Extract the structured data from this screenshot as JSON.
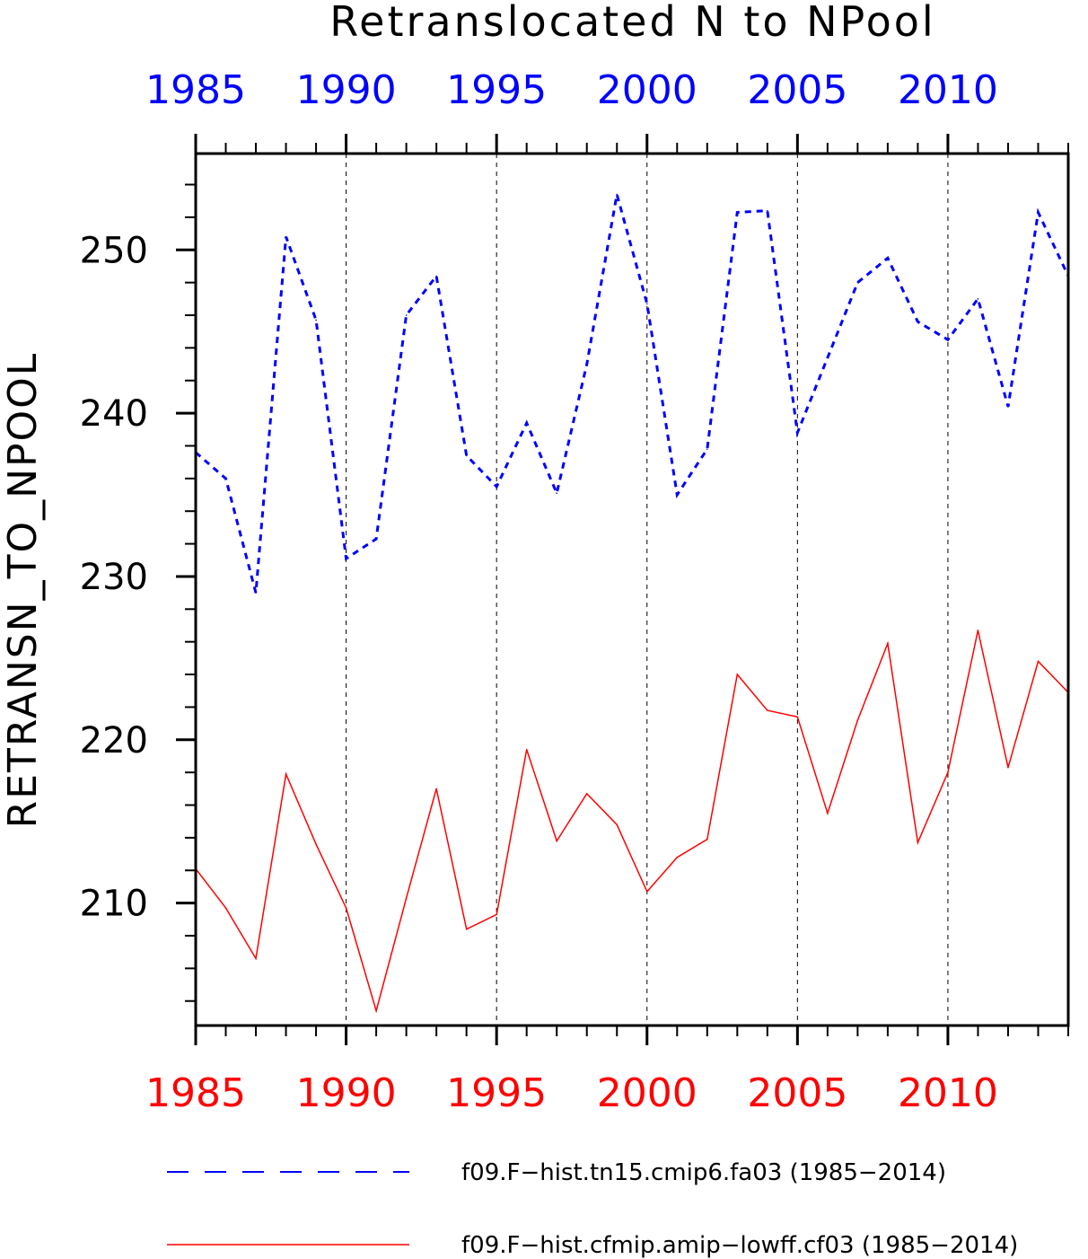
{
  "chart_data": {
    "type": "line",
    "title": "Retranslocated N to NPool",
    "ylabel": "RETRANSN_TO_NPOOL",
    "xlabel": "",
    "xlim": [
      1985,
      2014
    ],
    "ylim": [
      202.5,
      255.9
    ],
    "x_ticks": [
      "1985",
      "1990",
      "1995",
      "2000",
      "2005",
      "2010"
    ],
    "y_ticks": [
      "210",
      "220",
      "230",
      "240",
      "250"
    ],
    "grid": "vertical dashed lines at 1990, 1995, 2000, 2005, 2010",
    "legend": "bottom",
    "x": [
      1985,
      1986,
      1987,
      1988,
      1989,
      1990,
      1991,
      1992,
      1993,
      1994,
      1995,
      1996,
      1997,
      1998,
      1999,
      2000,
      2001,
      2002,
      2003,
      2004,
      2005,
      2006,
      2007,
      2008,
      2009,
      2010,
      2011,
      2012,
      2013,
      2014
    ],
    "series": [
      {
        "name": "f09.F−hist.tn15.cmip6.fa03 (1985−2014)",
        "color": "#0000ff",
        "style": "dashed",
        "values": [
          237.6,
          236.0,
          229.0,
          250.8,
          245.7,
          231.1,
          232.3,
          246.0,
          248.4,
          237.4,
          235.5,
          239.4,
          235.1,
          243.0,
          253.4,
          246.7,
          235.0,
          237.8,
          252.3,
          252.4,
          238.8,
          243.4,
          248.0,
          249.5,
          245.6,
          244.5,
          247.0,
          240.4,
          252.3,
          248.4
        ]
      },
      {
        "name": "f09.F−hist.cfmip.amip−lowff.cf03 (1985−2014)",
        "color": "#ff0000",
        "style": "solid",
        "values": [
          212.1,
          209.7,
          206.6,
          217.9,
          213.6,
          209.7,
          203.4,
          210.3,
          217.0,
          208.4,
          209.3,
          219.4,
          213.8,
          216.7,
          214.8,
          210.7,
          212.8,
          213.9,
          224.0,
          221.8,
          221.4,
          215.5,
          221.2,
          225.9,
          213.7,
          218.0,
          226.7,
          218.3,
          224.8,
          222.9
        ]
      }
    ]
  }
}
